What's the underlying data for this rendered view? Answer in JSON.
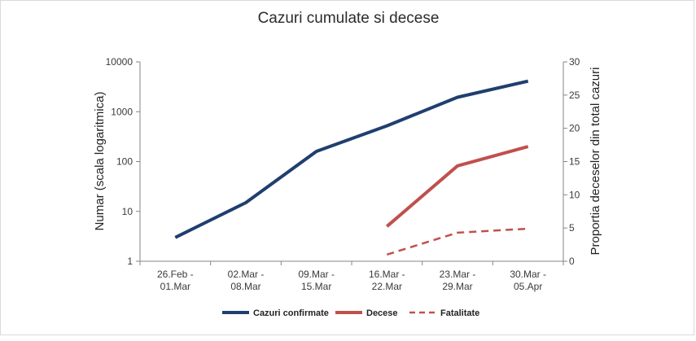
{
  "chart_data": {
    "type": "line",
    "title": "Cazuri cumulate si decese",
    "ylabel": "Numar (scala logaritmica)",
    "y2label": "Proportia deceselor din total cazuri",
    "yscale": "log",
    "ylim": [
      1,
      10000
    ],
    "y_ticks": [
      "10000",
      "1000",
      "100",
      "10",
      "1"
    ],
    "y2lim": [
      0,
      30
    ],
    "y2_ticks": [
      "30",
      "25",
      "20",
      "15",
      "10",
      "5",
      "0"
    ],
    "grid": false,
    "legend_position": "bottom",
    "categories": [
      [
        "26.Feb -",
        "01.Mar"
      ],
      [
        "02.Mar -",
        "08.Mar"
      ],
      [
        "09.Mar -",
        "15.Mar"
      ],
      [
        "16.Mar -",
        "22.Mar"
      ],
      [
        "23.Mar -",
        "29.Mar"
      ],
      [
        "30.Mar -",
        "05.Apr"
      ]
    ],
    "series": [
      {
        "name": "Cazuri confirmate",
        "axis": "left",
        "color": "#1f3f6e",
        "dash": "solid",
        "values": [
          3,
          15,
          160,
          520,
          1950,
          4100
        ]
      },
      {
        "name": "Decese",
        "axis": "left",
        "color": "#c0504d",
        "dash": "solid",
        "values": [
          null,
          null,
          null,
          5,
          82,
          200
        ]
      },
      {
        "name": "Fatalitate",
        "axis": "right",
        "color": "#c0504d",
        "dash": "dashed",
        "values": [
          null,
          null,
          null,
          1.0,
          4.3,
          4.9
        ]
      }
    ]
  }
}
